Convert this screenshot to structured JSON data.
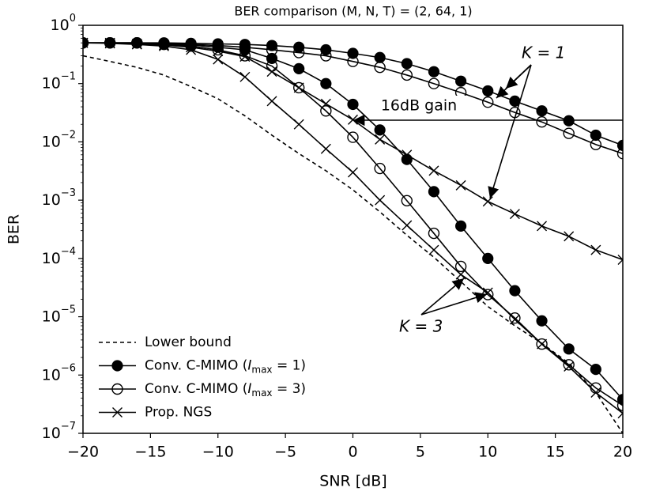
{
  "chart_data": {
    "type": "line",
    "title": "BER comparison (M, N, T) = (2, 64, 1)",
    "xlabel": "SNR [dB]",
    "ylabel": "BER",
    "log_y": true,
    "xlim": [
      -20,
      20
    ],
    "ylim": [
      1e-07,
      1
    ],
    "xticks": [
      {
        "value": -20,
        "label": "−20"
      },
      {
        "value": -15,
        "label": "−15"
      },
      {
        "value": -10,
        "label": "−10"
      },
      {
        "value": -5,
        "label": "−5"
      },
      0,
      5,
      10,
      15,
      20
    ],
    "yticks": [
      {
        "value": 1,
        "label": "10",
        "exponent": "0"
      },
      {
        "value": 0.1,
        "label": "10",
        "exponent": "−1"
      },
      {
        "value": 0.01,
        "label": "10",
        "exponent": "−2"
      },
      {
        "value": 0.001,
        "label": "10",
        "exponent": "−3"
      },
      {
        "value": 0.0001,
        "label": "10",
        "exponent": "−4"
      },
      {
        "value": 1e-05,
        "label": "10",
        "exponent": "−5"
      },
      {
        "value": 1e-06,
        "label": "10",
        "exponent": "−6"
      },
      {
        "value": 1e-07,
        "label": "10",
        "exponent": "−7"
      }
    ],
    "x": [
      -20,
      -18,
      -16,
      -14,
      -12,
      -10,
      -8,
      -6,
      -4,
      -2,
      0,
      2,
      4,
      6,
      8,
      10,
      12,
      14,
      16,
      18,
      20
    ],
    "series": [
      {
        "marker": "none",
        "dashed": true,
        "color": "#000",
        "values": [
          0.3,
          0.24,
          0.19,
          0.14,
          0.089,
          0.055,
          0.028,
          0.013,
          0.0063,
          0.0032,
          0.0015,
          0.00063,
          0.00025,
          0.000105,
          4e-05,
          1.5e-05,
          7e-06,
          3.5e-06,
          1.6e-06,
          5e-07,
          1e-07
        ]
      },
      {
        "marker": "filled",
        "color": "#000",
        "values": [
          0.5,
          0.5,
          0.5,
          0.5,
          0.49,
          0.48,
          0.47,
          0.45,
          0.42,
          0.38,
          0.33,
          0.28,
          0.22,
          0.16,
          0.11,
          0.075,
          0.05,
          0.034,
          0.023,
          0.013,
          0.0087
        ]
      },
      {
        "marker": "open",
        "color": "#000",
        "values": [
          0.5,
          0.5,
          0.5,
          0.49,
          0.47,
          0.45,
          0.42,
          0.38,
          0.34,
          0.3,
          0.24,
          0.19,
          0.14,
          0.1,
          0.07,
          0.048,
          0.032,
          0.022,
          0.014,
          0.009,
          0.0063
        ]
      },
      {
        "marker": "cross",
        "color": "#000",
        "values": [
          0.5,
          0.5,
          0.48,
          0.46,
          0.42,
          0.36,
          0.29,
          0.16,
          0.085,
          0.045,
          0.024,
          0.011,
          0.006,
          0.0032,
          0.0018,
          0.00095,
          0.00058,
          0.00036,
          0.00024,
          0.00014,
          9.5e-05
        ]
      },
      {
        "marker": "filled",
        "color": "#000",
        "values": [
          0.5,
          0.5,
          0.5,
          0.48,
          0.46,
          0.42,
          0.38,
          0.27,
          0.18,
          0.1,
          0.044,
          0.016,
          0.005,
          0.0014,
          0.00036,
          0.0001,
          2.8e-05,
          8.5e-06,
          2.8e-06,
          1.25e-06,
          3.8e-07
        ]
      },
      {
        "marker": "open",
        "color": "#000",
        "values": [
          0.5,
          0.5,
          0.5,
          0.47,
          0.44,
          0.38,
          0.3,
          0.2,
          0.085,
          0.034,
          0.012,
          0.0035,
          0.00098,
          0.00027,
          7.3e-05,
          2.4e-05,
          9.5e-06,
          3.4e-06,
          1.5e-06,
          6e-07,
          3e-07
        ]
      },
      {
        "marker": "cross",
        "color": "#000",
        "values": [
          0.5,
          0.49,
          0.47,
          0.44,
          0.38,
          0.26,
          0.13,
          0.05,
          0.02,
          0.0076,
          0.003,
          0.001,
          0.00037,
          0.00014,
          5.3e-05,
          2.6e-05,
          9e-06,
          3.4e-06,
          1.4e-06,
          5e-07,
          2.2e-07
        ]
      }
    ],
    "legend": [
      {
        "marker": "none",
        "dashed": true,
        "text": "Lower bound"
      },
      {
        "marker": "filled",
        "prefix": "Conv. C-MIMO (",
        "var": "I",
        "sub": "max",
        "suffix": " = 1)"
      },
      {
        "marker": "open",
        "prefix": "Conv. C-MIMO (",
        "var": "I",
        "sub": "max",
        "suffix": " = 3)"
      },
      {
        "marker": "cross",
        "text": "Prop. NGS"
      }
    ],
    "annotations": [
      "K = 1",
      "16dB gain",
      "K = 3"
    ]
  }
}
